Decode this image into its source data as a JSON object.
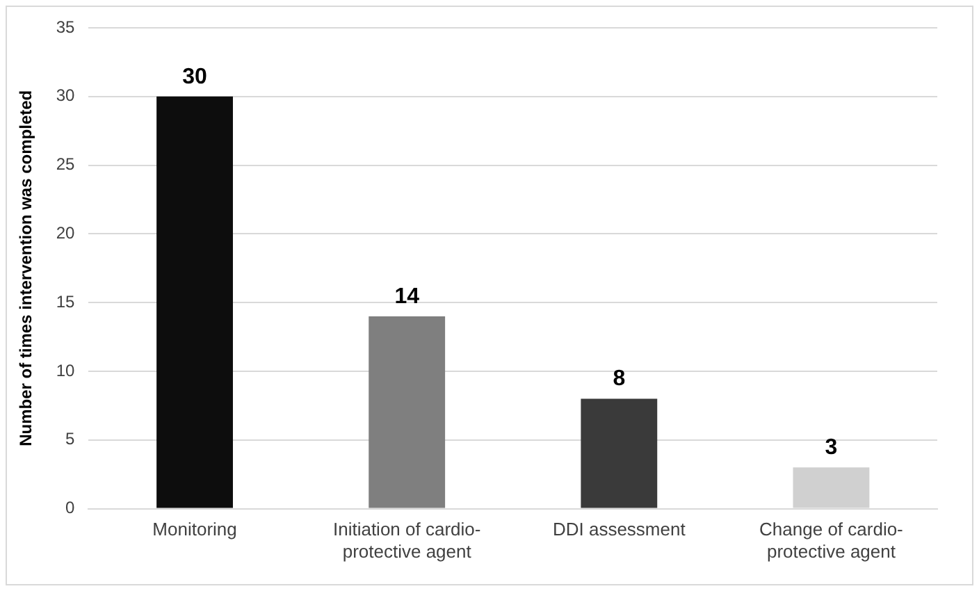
{
  "chart_data": {
    "type": "bar",
    "ylabel": "Number of times intervention was completed",
    "categories": [
      "Monitoring",
      "Initiation of cardio-protective agent",
      "DDI assessment",
      "Change of cardio-protective agent"
    ],
    "values": [
      30,
      14,
      8,
      3
    ],
    "colors": [
      "#0d0d0d",
      "#7f7f7f",
      "#3a3a3a",
      "#d0d0d0"
    ],
    "ylim": [
      0,
      35
    ],
    "yticks": [
      0,
      5,
      10,
      15,
      20,
      25,
      30,
      35
    ],
    "grid": "y",
    "data_labels": true
  }
}
